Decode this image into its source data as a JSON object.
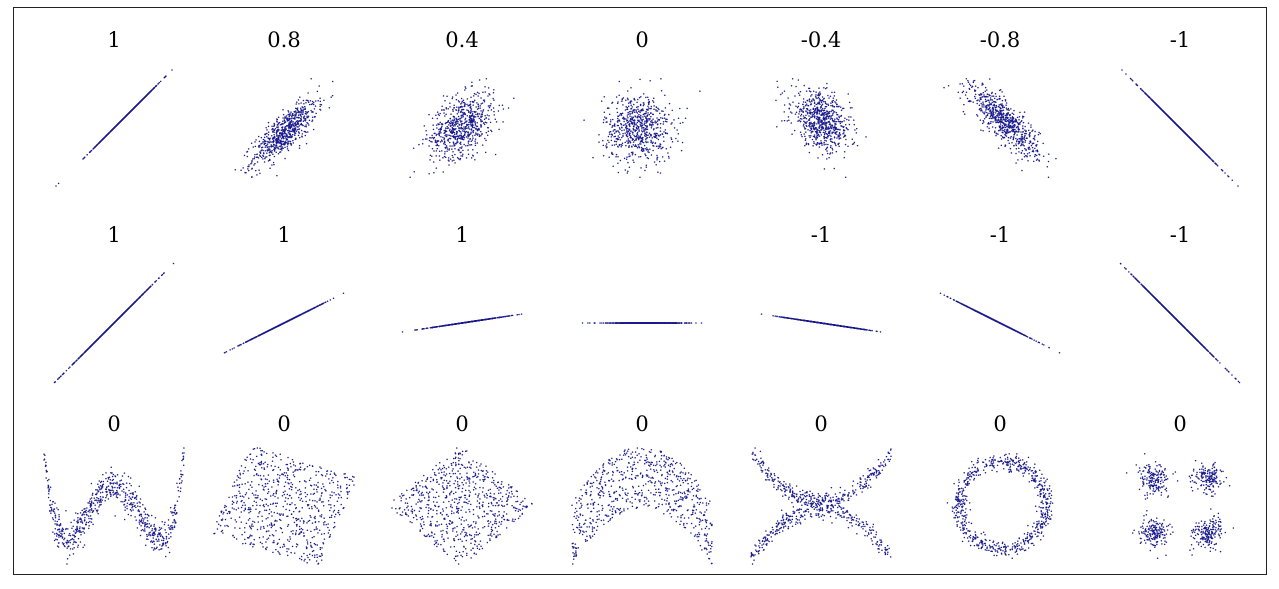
{
  "chart_data": {
    "type": "scatter",
    "point_color": "#1a1a8c",
    "rows": [
      {
        "panels": [
          {
            "label": "1",
            "pattern": "linear",
            "r": 1
          },
          {
            "label": "0.8",
            "pattern": "linear",
            "r": 0.8
          },
          {
            "label": "0.4",
            "pattern": "linear",
            "r": 0.4
          },
          {
            "label": "0",
            "pattern": "linear",
            "r": 0
          },
          {
            "label": "-0.4",
            "pattern": "linear",
            "r": -0.4
          },
          {
            "label": "-0.8",
            "pattern": "linear",
            "r": -0.8
          },
          {
            "label": "-1",
            "pattern": "linear",
            "r": -1
          }
        ]
      },
      {
        "panels": [
          {
            "label": "1",
            "pattern": "line",
            "slope": 1.0
          },
          {
            "label": "1",
            "pattern": "line",
            "slope": 0.5
          },
          {
            "label": "1",
            "pattern": "line",
            "slope": 0.15
          },
          {
            "label": "",
            "pattern": "line",
            "slope": 0
          },
          {
            "label": "-1",
            "pattern": "line",
            "slope": -0.15
          },
          {
            "label": "-1",
            "pattern": "line",
            "slope": -0.5
          },
          {
            "label": "-1",
            "pattern": "line",
            "slope": -1.0
          }
        ]
      },
      {
        "panels": [
          {
            "label": "0",
            "pattern": "wave"
          },
          {
            "label": "0",
            "pattern": "rotated-square"
          },
          {
            "label": "0",
            "pattern": "diamond"
          },
          {
            "label": "0",
            "pattern": "parabola"
          },
          {
            "label": "0",
            "pattern": "x-shape"
          },
          {
            "label": "0",
            "pattern": "ring"
          },
          {
            "label": "0",
            "pattern": "four-clusters"
          }
        ]
      }
    ]
  }
}
